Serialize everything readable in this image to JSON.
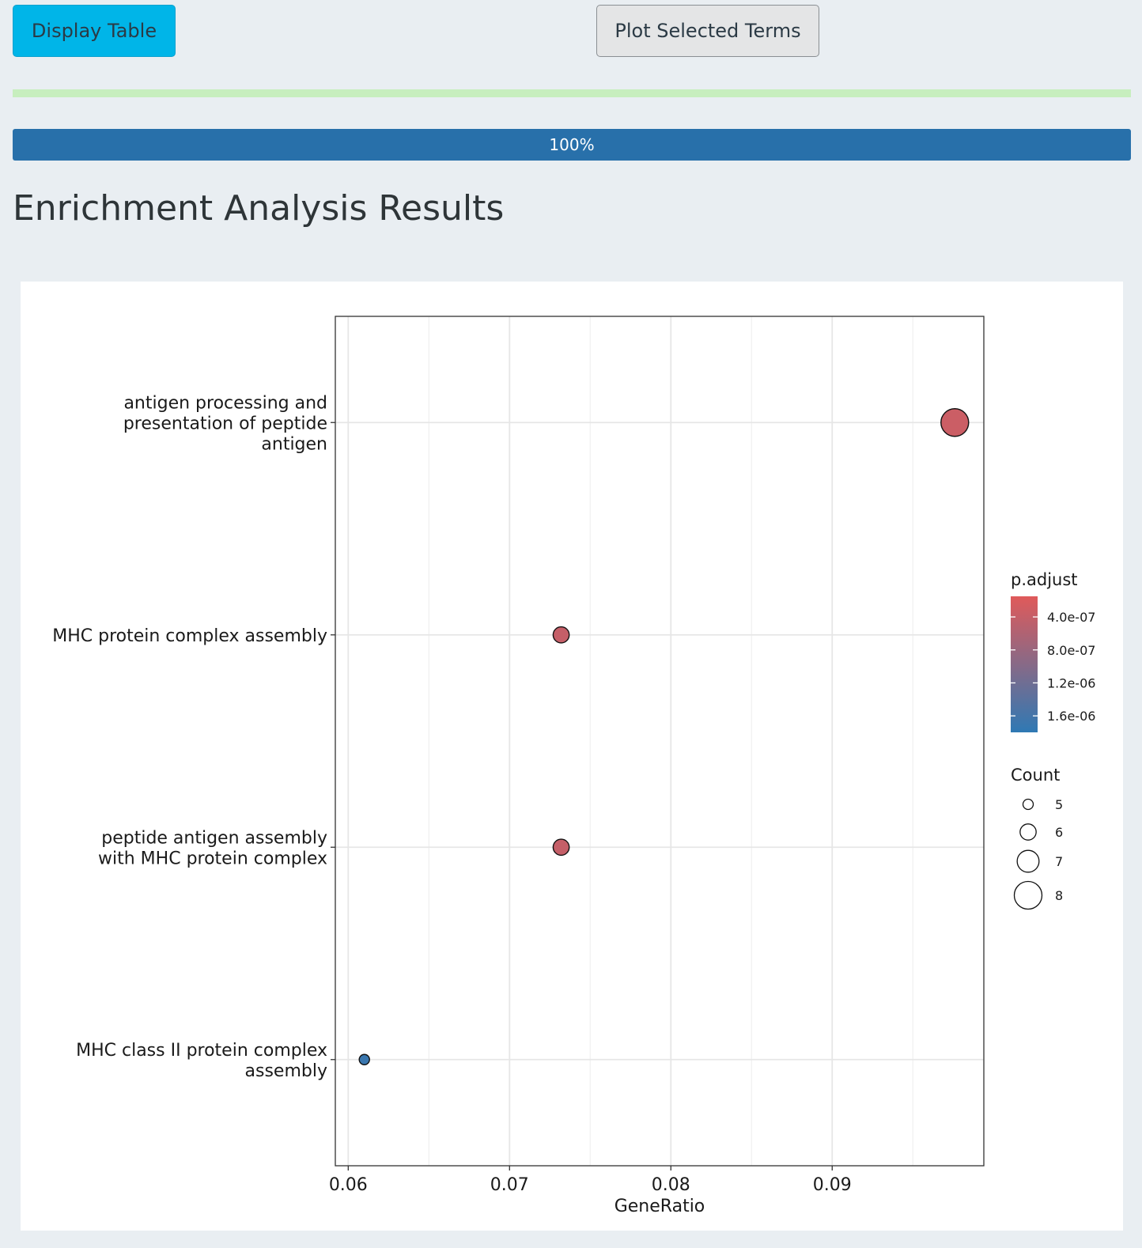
{
  "toolbar": {
    "display_table_label": "Display Table",
    "plot_selected_label": "Plot Selected Terms"
  },
  "progress": {
    "value": 100,
    "label": "100%"
  },
  "page": {
    "title": "Enrichment Analysis Results"
  },
  "chart_data": {
    "type": "scatter",
    "title": "",
    "xlabel": "GeneRatio",
    "ylabel": "",
    "xlim": [
      0.0592,
      0.0994
    ],
    "x_ticks": [
      0.06,
      0.07,
      0.08,
      0.09
    ],
    "x_tick_labels": [
      "0.06",
      "0.07",
      "0.08",
      "0.09"
    ],
    "grid": true,
    "categories": [
      [
        "antigen processing and",
        "presentation of peptide",
        "antigen"
      ],
      [
        "MHC protein complex assembly"
      ],
      [
        "peptide antigen assembly",
        "with MHC protein complex"
      ],
      [
        "MHC class II protein complex",
        "assembly"
      ]
    ],
    "points": [
      {
        "x": 0.0976,
        "count": 8,
        "p_adjust": 3.5e-07
      },
      {
        "x": 0.0732,
        "count": 6,
        "p_adjust": 4e-07
      },
      {
        "x": 0.0732,
        "count": 6,
        "p_adjust": 4e-07
      },
      {
        "x": 0.061,
        "count": 5,
        "p_adjust": 1.7e-06
      }
    ],
    "color_legend": {
      "title": "p.adjust",
      "range": [
        1.8e-06,
        1.5e-07
      ],
      "ticks": [
        4e-07,
        8e-07,
        1.2e-06,
        1.6e-06
      ],
      "tick_labels": [
        "4.0e-07",
        "8.0e-07",
        "1.2e-06",
        "1.6e-06"
      ],
      "low_color": "#e05a5a",
      "high_color": "#2f79b4"
    },
    "size_legend": {
      "title": "Count",
      "values": [
        5,
        6,
        7,
        8
      ],
      "labels": [
        "5",
        "6",
        "7",
        "8"
      ]
    },
    "legend_position": "right"
  }
}
